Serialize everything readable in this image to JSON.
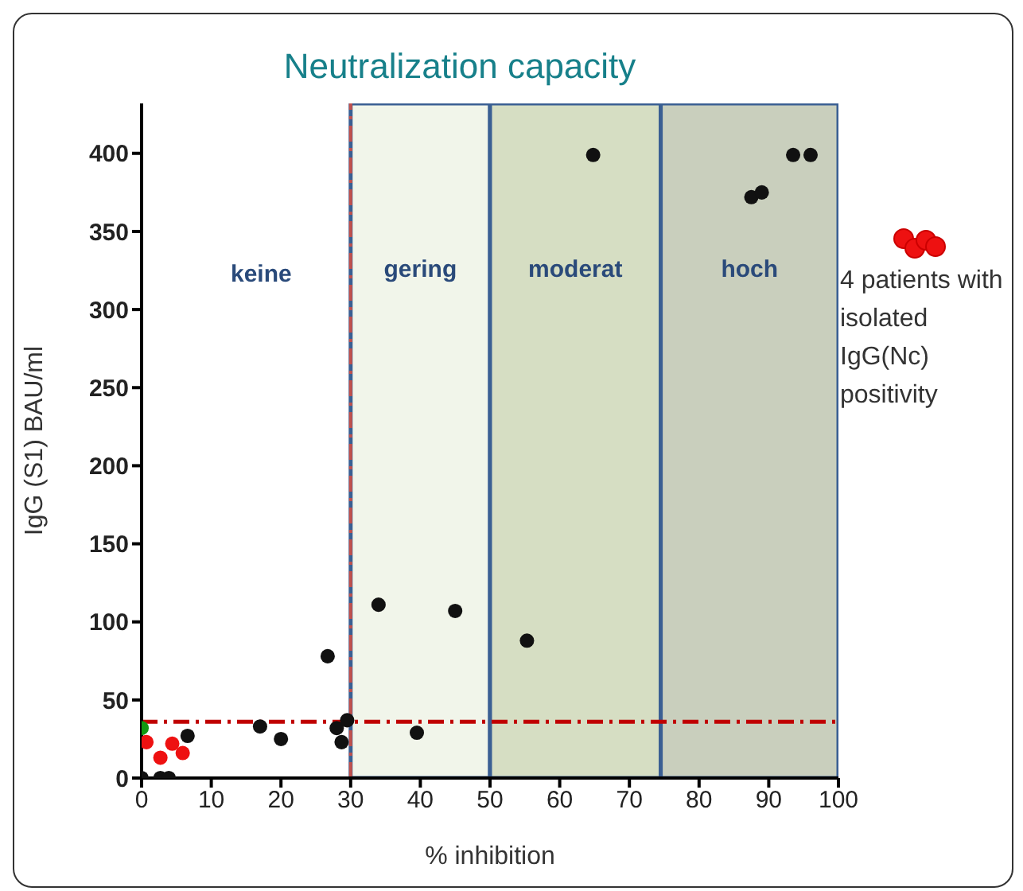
{
  "chart_data": {
    "type": "scatter",
    "title": "Neutralization capacity",
    "xlabel": "% inhibition",
    "ylabel": "IgG (S1) BAU/ml",
    "xlim": [
      0,
      100
    ],
    "xticks": [
      0,
      10,
      20,
      30,
      40,
      50,
      60,
      70,
      80,
      90,
      100
    ],
    "ylim": [
      0,
      432
    ],
    "yticks": [
      0,
      50,
      100,
      150,
      200,
      250,
      300,
      350,
      400
    ],
    "annotations": [
      "keine"
    ],
    "grid": false,
    "legend": "right",
    "marker": "circle",
    "series": [
      {
        "color": "#111111",
        "x": [
          0,
          2.7,
          3.9,
          6.6,
          17,
          20,
          26.7,
          28,
          28.7,
          29.5,
          34,
          39.5,
          45,
          55.3,
          64.8,
          87.5,
          89,
          93.5,
          96
        ],
        "values": [
          0,
          0,
          0,
          27,
          33,
          25,
          78,
          32,
          23,
          37,
          111,
          29,
          107,
          88,
          399,
          372,
          375,
          399,
          399
        ]
      },
      {
        "name": "4 patients with isolated IgG(Nc) positivity",
        "color": "#ee1111",
        "x": [
          0.7,
          2.7,
          4.4,
          5.9
        ],
        "values": [
          23,
          13,
          22,
          16
        ]
      },
      {
        "color": "#119911",
        "x": [
          0
        ],
        "values": [
          32
        ]
      }
    ],
    "bands": [
      {
        "axis": "x",
        "from": 30,
        "to": 50,
        "label": "gering",
        "color": "#f1f5ea"
      },
      {
        "axis": "x",
        "from": 50,
        "to": 74.5,
        "label": "moderat",
        "color": "#d6dec3"
      },
      {
        "axis": "x",
        "from": 74.5,
        "to": 100,
        "label": "hoch",
        "color": "#c9cfbd"
      }
    ],
    "ref_lines": [
      {
        "axis": "y",
        "value": 36,
        "color": "#c00000",
        "line_style": "dashed"
      },
      {
        "axis": "x",
        "value": 30,
        "color": "#c0504d",
        "line_style": "dashed"
      }
    ]
  }
}
